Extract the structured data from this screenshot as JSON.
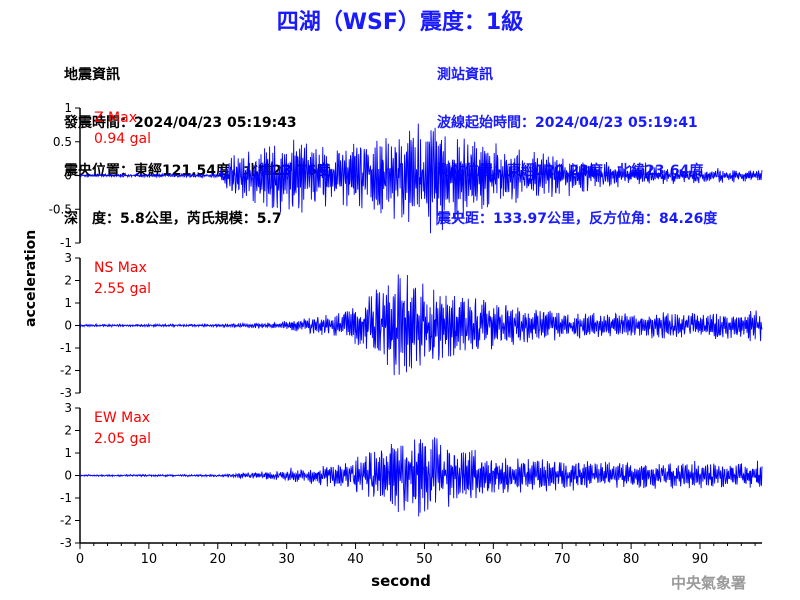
{
  "title": "四湖（WSF）震度：1級",
  "earthquake_info": {
    "heading": "地震資訊",
    "origin_time": "發震時間：2024/04/23 05:19:43",
    "epicenter": "震央位置：東經121.54度，北緯23.76度",
    "depth_magnitude": "深　度：5.8公里，芮氏規模：5.7"
  },
  "station_info": {
    "heading": "測站資訊",
    "wave_start_time": "波線起始時間：2024/04/23 05:19:41",
    "station_location": "測站位置：東經120.23度，北緯23.64度",
    "distance_azimuth": "震央距：133.97公里，反方位角：84.26度"
  },
  "footer": "中央氣象署",
  "colors": {
    "title": "#1a1aff",
    "trace": "#0000ff",
    "max_label": "#ff0000"
  },
  "chart_data": {
    "type": "line",
    "xlabel": "second",
    "ylabel": "acceleration",
    "xlim": [
      0,
      99
    ],
    "xticks": [
      0,
      10,
      20,
      30,
      40,
      50,
      60,
      70,
      80,
      90
    ],
    "grid": false,
    "panels": [
      {
        "name": "Z",
        "max_label": "Z Max",
        "max_value": "0.94 gal",
        "ylim": [
          -1,
          1
        ],
        "yticks": [
          -1,
          -0.5,
          0,
          0.5,
          1
        ],
        "envelope": [
          [
            0,
            0.02
          ],
          [
            20,
            0.03
          ],
          [
            22,
            0.3
          ],
          [
            30,
            0.6
          ],
          [
            38,
            0.45
          ],
          [
            45,
            0.65
          ],
          [
            52,
            0.94
          ],
          [
            56,
            0.6
          ],
          [
            62,
            0.45
          ],
          [
            70,
            0.3
          ],
          [
            80,
            0.15
          ],
          [
            90,
            0.12
          ],
          [
            99,
            0.1
          ]
        ]
      },
      {
        "name": "NS",
        "max_label": "NS Max",
        "max_value": "2.55 gal",
        "ylim": [
          -3,
          3
        ],
        "yticks": [
          -3,
          -2,
          -1,
          0,
          1,
          2,
          3
        ],
        "envelope": [
          [
            0,
            0.05
          ],
          [
            20,
            0.06
          ],
          [
            30,
            0.2
          ],
          [
            38,
            0.6
          ],
          [
            42,
            1.4
          ],
          [
            47,
            2.55
          ],
          [
            52,
            1.8
          ],
          [
            58,
            1.2
          ],
          [
            65,
            0.8
          ],
          [
            75,
            0.6
          ],
          [
            85,
            0.6
          ],
          [
            92,
            0.6
          ],
          [
            99,
            0.8
          ]
        ]
      },
      {
        "name": "EW",
        "max_label": "EW Max",
        "max_value": "2.05 gal",
        "ylim": [
          -3,
          3
        ],
        "yticks": [
          -3,
          -2,
          -1,
          0,
          1,
          2,
          3
        ],
        "envelope": [
          [
            0,
            0.04
          ],
          [
            20,
            0.05
          ],
          [
            30,
            0.25
          ],
          [
            38,
            0.6
          ],
          [
            45,
            1.5
          ],
          [
            50,
            2.05
          ],
          [
            55,
            1.4
          ],
          [
            62,
            0.9
          ],
          [
            70,
            0.7
          ],
          [
            80,
            0.6
          ],
          [
            90,
            0.6
          ],
          [
            99,
            0.6
          ]
        ]
      }
    ]
  }
}
